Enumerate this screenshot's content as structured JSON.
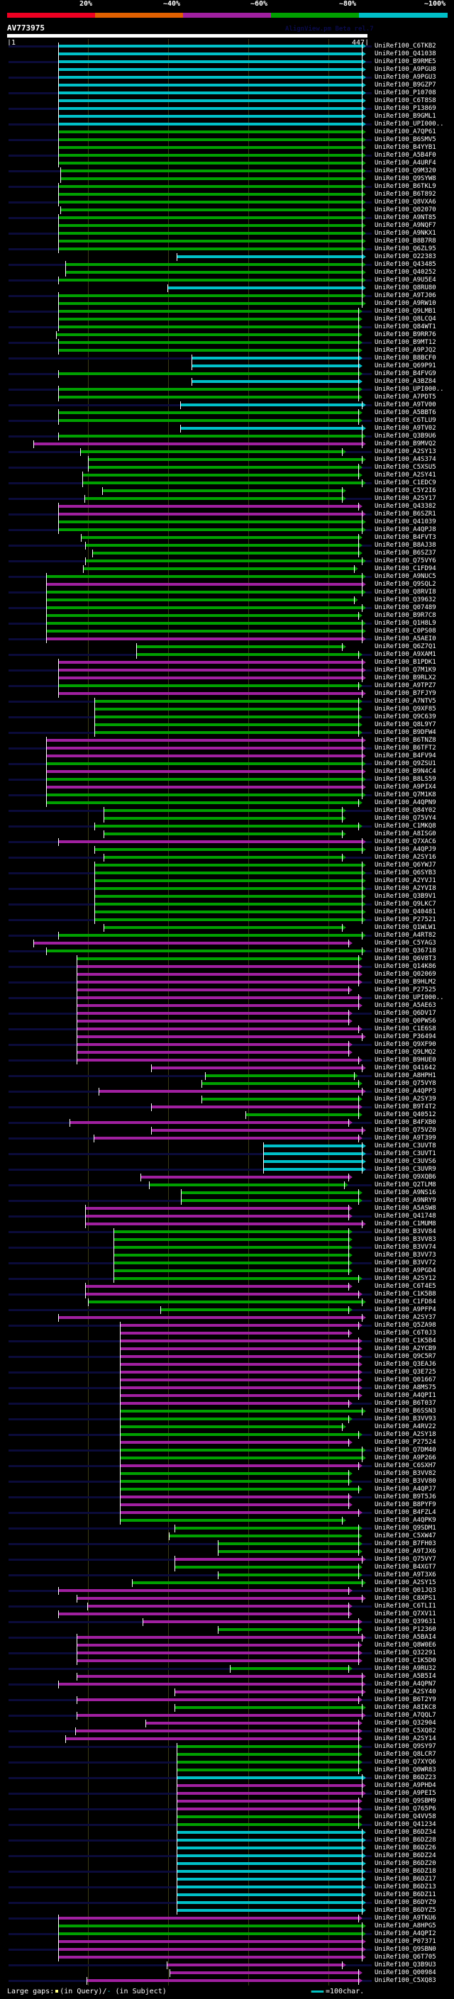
{
  "legend": {
    "items": [
      {
        "label": "20%",
        "color": "#ee0022"
      },
      {
        "label": "~40%",
        "color": "#e06000"
      },
      {
        "label": "~60%",
        "color": "#a020a0"
      },
      {
        "label": "~80%",
        "color": "#00a000"
      },
      {
        "label": "~100%",
        "color": "#00c0c8"
      }
    ]
  },
  "query": {
    "name": "AV773975",
    "length": 447,
    "start_label": "1",
    "end_label": "447"
  },
  "watermark": "AlignView.pm Beta rel.7",
  "grid_residues": [
    100,
    200,
    300,
    400
  ],
  "colors": {
    "c": "#00c0c8",
    "g": "#00a000",
    "p": "#a020a0",
    "stripe": "#0b0b3a",
    "qgap": "#ffff80"
  },
  "hits": [
    [
      "UniRef100_C6TKB2",
      "c",
      63,
      447
    ],
    [
      "UniRef100_Q41038",
      "c",
      63,
      447
    ],
    [
      "UniRef100_B9RME5",
      "c",
      63,
      447
    ],
    [
      "UniRef100_A9PGU8",
      "c",
      63,
      447
    ],
    [
      "UniRef100_A9PGU3",
      "c",
      63,
      447
    ],
    [
      "UniRef100_B9GZP7",
      "c",
      63,
      447
    ],
    [
      "UniRef100_P10708",
      "c",
      63,
      447
    ],
    [
      "UniRef100_C6T8S8",
      "c",
      63,
      447
    ],
    [
      "UniRef100_P13869",
      "c",
      63,
      447
    ],
    [
      "UniRef100_B9GML1",
      "c",
      63,
      447
    ],
    [
      "UniRef100_UPI000..",
      "c",
      63,
      447
    ],
    [
      "UniRef100_A7QP61",
      "g",
      63,
      447
    ],
    [
      "UniRef100_B6SMV5",
      "g",
      63,
      447
    ],
    [
      "UniRef100_B4YYB1",
      "g",
      63,
      447
    ],
    [
      "UniRef100_A5B4F0",
      "g",
      63,
      447
    ],
    [
      "UniRef100_A4URF4",
      "g",
      63,
      447
    ],
    [
      "UniRef100_Q9M320",
      "g",
      66,
      447
    ],
    [
      "UniRef100_Q9SYW8",
      "g",
      66,
      447
    ],
    [
      "UniRef100_B6TKL9",
      "g",
      63,
      447
    ],
    [
      "UniRef100_B6T892",
      "g",
      63,
      447
    ],
    [
      "UniRef100_Q8VXA6",
      "g",
      63,
      447
    ],
    [
      "UniRef100_Q02070",
      "g",
      66,
      447
    ],
    [
      "UniRef100_A9NT85",
      "g",
      63,
      447
    ],
    [
      "UniRef100_A9NQF7",
      "g",
      63,
      447
    ],
    [
      "UniRef100_A9NKX1",
      "g",
      63,
      447
    ],
    [
      "UniRef100_B8B7R8",
      "g",
      63,
      447
    ],
    [
      "UniRef100_Q6ZL95",
      "g",
      63,
      447
    ],
    [
      "UniRef100_O22383",
      "c",
      211,
      447
    ],
    [
      "UniRef100_Q43485",
      "g",
      72,
      447
    ],
    [
      "UniRef100_Q40252",
      "g",
      72,
      447
    ],
    [
      "UniRef100_A9U5E4",
      "g",
      63,
      447
    ],
    [
      "UniRef100_Q8RU80",
      "c",
      199,
      447
    ],
    [
      "UniRef100_A9TJ06",
      "g",
      63,
      447
    ],
    [
      "UniRef100_A9RW10",
      "g",
      63,
      447
    ],
    [
      "UniRef100_Q9LMB1",
      "g",
      63,
      443
    ],
    [
      "UniRef100_Q8LCQ4",
      "g",
      63,
      443
    ],
    [
      "UniRef100_Q84WT1",
      "g",
      63,
      443
    ],
    [
      "UniRef100_B9RR76",
      "g",
      60,
      443
    ],
    [
      "UniRef100_B9MT12",
      "g",
      63,
      443
    ],
    [
      "UniRef100_A9PJQ2",
      "g",
      63,
      443
    ],
    [
      "UniRef100_B8BCF0",
      "c",
      229,
      443
    ],
    [
      "UniRef100_Q69P91",
      "c",
      229,
      443
    ],
    [
      "UniRef100_B4FVG9",
      "g",
      63,
      443
    ],
    [
      "UniRef100_A3BZ84",
      "c",
      229,
      443
    ],
    [
      "UniRef100_UPI000..",
      "g",
      63,
      443
    ],
    [
      "UniRef100_A7PDT5",
      "g",
      63,
      443
    ],
    [
      "UniRef100_A9TV00",
      "c",
      215,
      447
    ],
    [
      "UniRef100_A5BBT6",
      "g",
      63,
      443
    ],
    [
      "UniRef100_C6TLU9",
      "g",
      63,
      443
    ],
    [
      "UniRef100_A9TV02",
      "c",
      215,
      447
    ],
    [
      "UniRef100_Q3B9U6",
      "g",
      63,
      447
    ],
    [
      "UniRef100_B9MVQ2",
      "p",
      32,
      447
    ],
    [
      "UniRef100_A2SY13",
      "g",
      90,
      422
    ],
    [
      "UniRef100_A4S374",
      "g",
      100,
      447
    ],
    [
      "UniRef100_C5XSU5",
      "g",
      100,
      443
    ],
    [
      "UniRef100_A2SY41",
      "g",
      93,
      443
    ],
    [
      "UniRef100_C1EDC9",
      "g",
      93,
      447
    ],
    [
      "UniRef100_C5Y2I6",
      "g",
      118,
      422
    ],
    [
      "UniRef100_A2SY17",
      "g",
      96,
      422
    ],
    [
      "UniRef100_Q43382",
      "p",
      63,
      443
    ],
    [
      "UniRef100_B6SZR1",
      "p",
      63,
      447
    ],
    [
      "UniRef100_Q41039",
      "g",
      63,
      447
    ],
    [
      "UniRef100_A4QPJ8",
      "g",
      63,
      447
    ],
    [
      "UniRef100_B4FVT3",
      "g",
      91,
      443
    ],
    [
      "UniRef100_B8AJ38",
      "g",
      97,
      443
    ],
    [
      "UniRef100_B6SZ37",
      "g",
      105,
      443
    ],
    [
      "UniRef100_Q75VY6",
      "g",
      97,
      447
    ],
    [
      "UniRef100_C1FD94",
      "g",
      94,
      437
    ],
    [
      "UniRef100_A9NUC5",
      "g",
      48,
      447
    ],
    [
      "UniRef100_Q9SQL2",
      "p",
      48,
      447
    ],
    [
      "UniRef100_Q8RVI8",
      "g",
      48,
      447
    ],
    [
      "UniRef100_Q39632",
      "g",
      48,
      437
    ],
    [
      "UniRef100_Q07489",
      "g",
      48,
      447
    ],
    [
      "UniRef100_B9R7C8",
      "g",
      48,
      443
    ],
    [
      "UniRef100_Q1H8L9",
      "g",
      48,
      447
    ],
    [
      "UniRef100_C0PS08",
      "g",
      48,
      447
    ],
    [
      "UniRef100_A5AEI0",
      "p",
      48,
      447
    ],
    [
      "UniRef100_Q6Z7Q1",
      "g",
      160,
      422
    ],
    [
      "UniRef100_A9XAM1",
      "g",
      160,
      443
    ],
    [
      "UniRef100_B1PDK1",
      "p",
      63,
      447
    ],
    [
      "UniRef100_Q7M1K9",
      "p",
      63,
      447
    ],
    [
      "UniRef100_B9RLX2",
      "p",
      63,
      447
    ],
    [
      "UniRef100_A9TPZ7",
      "g",
      63,
      443
    ],
    [
      "UniRef100_B7FJY9",
      "p",
      63,
      447
    ],
    [
      "UniRef100_A7NTV5",
      "g",
      108,
      443
    ],
    [
      "UniRef100_Q9XF85",
      "g",
      108,
      443
    ],
    [
      "UniRef100_Q9C639",
      "g",
      108,
      443
    ],
    [
      "UniRef100_Q8L9Y7",
      "g",
      108,
      443
    ],
    [
      "UniRef100_B9DFW4",
      "g",
      108,
      443
    ],
    [
      "UniRef100_B6TNZ8",
      "p",
      48,
      447
    ],
    [
      "UniRef100_B6TFT2",
      "p",
      48,
      447
    ],
    [
      "UniRef100_B4FV94",
      "p",
      48,
      447
    ],
    [
      "UniRef100_Q9ZSU1",
      "g",
      48,
      447
    ],
    [
      "UniRef100_B9N4C4",
      "p",
      48,
      447
    ],
    [
      "UniRef100_B8LS59",
      "g",
      48,
      447
    ],
    [
      "UniRef100_A9PIX4",
      "p",
      48,
      447
    ],
    [
      "UniRef100_Q7M1K8",
      "g",
      48,
      447
    ],
    [
      "UniRef100_A4QPN9",
      "g",
      48,
      443
    ],
    [
      "UniRef100_Q84Y02",
      "g",
      120,
      422
    ],
    [
      "UniRef100_Q75VY4",
      "g",
      120,
      422
    ],
    [
      "UniRef100_C1MKQ8",
      "g",
      108,
      443
    ],
    [
      "UniRef100_A8ISG0",
      "g",
      120,
      422
    ],
    [
      "UniRef100_Q7XAC6",
      "p",
      63,
      447
    ],
    [
      "UniRef100_A4QPJ9",
      "g",
      108,
      447
    ],
    [
      "UniRef100_A2SY16",
      "g",
      120,
      422
    ],
    [
      "UniRef100_Q6YWJ7",
      "g",
      108,
      447
    ],
    [
      "UniRef100_Q6SYB3",
      "g",
      108,
      447
    ],
    [
      "UniRef100_A2YVJ1",
      "g",
      108,
      447
    ],
    [
      "UniRef100_A2YVI8",
      "g",
      108,
      447
    ],
    [
      "UniRef100_Q3B9V1",
      "g",
      108,
      447
    ],
    [
      "UniRef100_Q9LKC7",
      "g",
      108,
      447
    ],
    [
      "UniRef100_Q40481",
      "g",
      108,
      447
    ],
    [
      "UniRef100_P27521",
      "g",
      108,
      447
    ],
    [
      "UniRef100_Q1WLW1",
      "g",
      120,
      422
    ],
    [
      "UniRef100_A4RT82",
      "g",
      63,
      447
    ],
    [
      "UniRef100_C5YAG3",
      "p",
      32,
      430
    ],
    [
      "UniRef100_Q36718",
      "g",
      48,
      447
    ],
    [
      "UniRef100_Q6V8T3",
      "g",
      86,
      443
    ],
    [
      "UniRef100_Q14K86",
      "p",
      86,
      443
    ],
    [
      "UniRef100_Q02069",
      "p",
      86,
      443
    ],
    [
      "UniRef100_B9HLM2",
      "p",
      86,
      443
    ],
    [
      "UniRef100_P27525",
      "p",
      86,
      430
    ],
    [
      "UniRef100_UPI000..",
      "p",
      86,
      443
    ],
    [
      "UniRef100_A5AE63",
      "p",
      86,
      443
    ],
    [
      "UniRef100_Q6DV17",
      "p",
      86,
      430
    ],
    [
      "UniRef100_Q0PWS6",
      "p",
      86,
      430
    ],
    [
      "UniRef100_C1E6S8",
      "p",
      86,
      443
    ],
    [
      "UniRef100_P36494",
      "p",
      86,
      447
    ],
    [
      "UniRef100_Q9XF90",
      "p",
      86,
      430
    ],
    [
      "UniRef100_Q9LMQ2",
      "p",
      86,
      430
    ],
    [
      "UniRef100_B9HUE0",
      "p",
      86,
      443
    ],
    [
      "UniRef100_Q41642",
      "p",
      179,
      447
    ],
    [
      "UniRef100_A8HPH1",
      "g",
      246,
      437
    ],
    [
      "UniRef100_Q75VY8",
      "g",
      242,
      443
    ],
    [
      "UniRef100_A4QPP3",
      "p",
      113,
      447
    ],
    [
      "UniRef100_A2SY39",
      "g",
      242,
      443
    ],
    [
      "UniRef100_B9T4T2",
      "p",
      179,
      443
    ],
    [
      "UniRef100_Q40512",
      "g",
      297,
      443
    ],
    [
      "UniRef100_B4FXB0",
      "p",
      77,
      430
    ],
    [
      "UniRef100_Q75VZ0",
      "p",
      179,
      447
    ],
    [
      "UniRef100_A9T399",
      "p",
      107,
      443
    ],
    [
      "UniRef100_C3UVT8",
      "c",
      319,
      447
    ],
    [
      "UniRef100_C3UVT1",
      "c",
      319,
      447
    ],
    [
      "UniRef100_C3UVS6",
      "c",
      319,
      447
    ],
    [
      "UniRef100_C3UVR9",
      "c",
      319,
      447
    ],
    [
      "UniRef100_Q9XQB6",
      "p",
      166,
      430
    ],
    [
      "UniRef100_Q2TLM8",
      "g",
      176,
      425
    ],
    [
      "UniRef100_A9NS16",
      "g",
      216,
      443
    ],
    [
      "UniRef100_A9NRY9",
      "g",
      216,
      443
    ],
    [
      "UniRef100_A5ASW8",
      "p",
      97,
      430
    ],
    [
      "UniRef100_Q41748",
      "p",
      97,
      430
    ],
    [
      "UniRef100_C1MUM8",
      "p",
      97,
      447
    ],
    [
      "UniRef100_B3VV84",
      "g",
      132,
      430
    ],
    [
      "UniRef100_B3VV83",
      "g",
      132,
      430
    ],
    [
      "UniRef100_B3VV74",
      "g",
      132,
      430
    ],
    [
      "UniRef100_B3VV73",
      "g",
      132,
      430
    ],
    [
      "UniRef100_B3VV72",
      "g",
      132,
      430
    ],
    [
      "UniRef100_A9PGD4",
      "g",
      132,
      430
    ],
    [
      "UniRef100_A2SY12",
      "g",
      132,
      443
    ],
    [
      "UniRef100_C6T4E5",
      "p",
      97,
      430
    ],
    [
      "UniRef100_C1K5B8",
      "p",
      97,
      443
    ],
    [
      "UniRef100_C1FD84",
      "g",
      100,
      447
    ],
    [
      "UniRef100_A9PFP4",
      "g",
      190,
      430
    ],
    [
      "UniRef100_A2SY37",
      "p",
      63,
      447
    ],
    [
      "UniRef100_Q5ZA98",
      "p",
      140,
      443
    ],
    [
      "UniRef100_C6T0J3",
      "p",
      140,
      430
    ],
    [
      "UniRef100_C1K5B4",
      "p",
      140,
      443
    ],
    [
      "UniRef100_A2YCB9",
      "p",
      140,
      443
    ],
    [
      "UniRef100_Q9C5R7",
      "p",
      140,
      443
    ],
    [
      "UniRef100_Q3EAJ6",
      "p",
      140,
      443
    ],
    [
      "UniRef100_Q3E725",
      "p",
      140,
      443
    ],
    [
      "UniRef100_Q01667",
      "p",
      140,
      443
    ],
    [
      "UniRef100_A8MS75",
      "p",
      140,
      443
    ],
    [
      "UniRef100_A4QPI1",
      "p",
      140,
      443
    ],
    [
      "UniRef100_B6T037",
      "p",
      140,
      430
    ],
    [
      "UniRef100_B6SSN3",
      "g",
      140,
      447
    ],
    [
      "UniRef100_B3VV93",
      "g",
      140,
      430
    ],
    [
      "UniRef100_A4RV22",
      "g",
      140,
      422
    ],
    [
      "UniRef100_A2SY18",
      "g",
      140,
      443
    ],
    [
      "UniRef100_P27524",
      "p",
      140,
      430
    ],
    [
      "UniRef100_Q7DM40",
      "g",
      140,
      447
    ],
    [
      "UniRef100_A9P266",
      "g",
      140,
      447
    ],
    [
      "UniRef100_C6SXH7",
      "p",
      140,
      443
    ],
    [
      "UniRef100_B3VV82",
      "g",
      140,
      430
    ],
    [
      "UniRef100_B3VV80",
      "g",
      140,
      430
    ],
    [
      "UniRef100_A4QPJ7",
      "g",
      140,
      443
    ],
    [
      "UniRef100_B9T5J6",
      "p",
      140,
      430
    ],
    [
      "UniRef100_B8PYF9",
      "p",
      140,
      430
    ],
    [
      "UniRef100_B4FZL4",
      "p",
      140,
      443
    ],
    [
      "UniRef100_A4QPK9",
      "g",
      140,
      422
    ],
    [
      "UniRef100_Q9SDM1",
      "g",
      208,
      443
    ],
    [
      "UniRef100_C5XW47",
      "g",
      201,
      443
    ],
    [
      "UniRef100_B7FH03",
      "g",
      262,
      443
    ],
    [
      "UniRef100_A9TJX6",
      "g",
      262,
      443
    ],
    [
      "UniRef100_Q75VY7",
      "p",
      208,
      447
    ],
    [
      "UniRef100_B4XGT7",
      "g",
      208,
      443
    ],
    [
      "UniRef100_A9T3X6",
      "g",
      262,
      443
    ],
    [
      "UniRef100_A2SY15",
      "g",
      155,
      447
    ],
    [
      "UniRef100_Q01JQ3",
      "p",
      63,
      430
    ],
    [
      "UniRef100_C8XPS1",
      "p",
      86,
      447
    ],
    [
      "UniRef100_C6TLI1",
      "p",
      99,
      430
    ],
    [
      "UniRef100_Q7XV11",
      "p",
      63,
      430
    ],
    [
      "UniRef100_Q39631",
      "p",
      168,
      443
    ],
    [
      "UniRef100_P12360",
      "g",
      262,
      443
    ],
    [
      "UniRef100_A5BAI4",
      "p",
      86,
      447
    ],
    [
      "UniRef100_Q8W0E6",
      "p",
      86,
      443
    ],
    [
      "UniRef100_Q32291",
      "p",
      86,
      443
    ],
    [
      "UniRef100_C1K5D0",
      "p",
      86,
      443
    ],
    [
      "UniRef100_A9RU32",
      "g",
      277,
      430
    ],
    [
      "UniRef100_A5B5I4",
      "p",
      86,
      447
    ],
    [
      "UniRef100_A4QPN7",
      "p",
      63,
      447
    ],
    [
      "UniRef100_A2SY40",
      "p",
      208,
      447
    ],
    [
      "UniRef100_B6T2Y9",
      "p",
      86,
      443
    ],
    [
      "UniRef100_A8IKC8",
      "g",
      208,
      447
    ],
    [
      "UniRef100_A7QQL7",
      "p",
      86,
      447
    ],
    [
      "UniRef100_Q32904",
      "p",
      172,
      443
    ],
    [
      "UniRef100_C5XQ82",
      "p",
      84,
      443
    ],
    [
      "UniRef100_A2SY14",
      "p",
      72,
      443
    ],
    [
      "UniRef100_Q9SY97",
      "g",
      211,
      443
    ],
    [
      "UniRef100_Q8LCR7",
      "g",
      211,
      443
    ],
    [
      "UniRef100_Q7XYQ6",
      "g",
      211,
      443
    ],
    [
      "UniRef100_Q0WR83",
      "g",
      211,
      443
    ],
    [
      "UniRef100_B6DZ23",
      "c",
      211,
      447
    ],
    [
      "UniRef100_A9PHD4",
      "p",
      211,
      447
    ],
    [
      "UniRef100_A9PEI5",
      "p",
      211,
      447
    ],
    [
      "UniRef100_Q9SBM9",
      "p",
      211,
      443
    ],
    [
      "UniRef100_Q765P6",
      "p",
      211,
      443
    ],
    [
      "UniRef100_Q4VV58",
      "g",
      211,
      443
    ],
    [
      "UniRef100_Q41234",
      "g",
      211,
      443
    ],
    [
      "UniRef100_B6DZ34",
      "c",
      211,
      447
    ],
    [
      "UniRef100_B6DZ28",
      "c",
      211,
      447
    ],
    [
      "UniRef100_B6DZ26",
      "c",
      211,
      447
    ],
    [
      "UniRef100_B6DZ24",
      "c",
      211,
      447
    ],
    [
      "UniRef100_B6DZ20",
      "c",
      211,
      447
    ],
    [
      "UniRef100_B6DZ18",
      "c",
      211,
      447
    ],
    [
      "UniRef100_B6DZ17",
      "c",
      211,
      447
    ],
    [
      "UniRef100_B6DZ13",
      "c",
      211,
      447
    ],
    [
      "UniRef100_B6DZ11",
      "c",
      211,
      447
    ],
    [
      "UniRef100_B6DYZ9",
      "c",
      211,
      447
    ],
    [
      "UniRef100_B6DYZ5",
      "c",
      211,
      447
    ],
    [
      "UniRef100_A9TKU6",
      "p",
      63,
      443
    ],
    [
      "UniRef100_A8HPG5",
      "g",
      63,
      447
    ],
    [
      "UniRef100_A4QPI2",
      "g",
      63,
      447
    ],
    [
      "UniRef100_P07371",
      "p",
      63,
      447
    ],
    [
      "UniRef100_Q9SBN0",
      "p",
      63,
      447
    ],
    [
      "UniRef100_Q6T705",
      "p",
      63,
      447
    ],
    [
      "UniRef100_Q3B9U3",
      "p",
      198,
      422
    ],
    [
      "UniRef100_Q00984",
      "p",
      202,
      443
    ],
    [
      "UniRef100_C5XQ83",
      "p",
      98,
      443
    ]
  ],
  "footer": {
    "gaps_prefix": "Large gaps:",
    "gaps_query": "(in Query)/",
    "gaps_subject_mark": "-",
    "gaps_subject": " (in Subject)",
    "scale_label": "=100char."
  }
}
